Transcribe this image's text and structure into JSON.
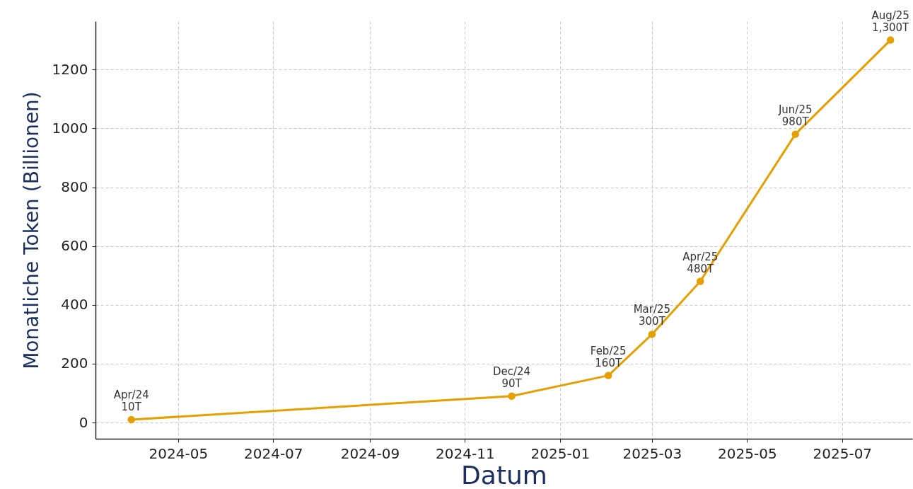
{
  "chart_data": {
    "type": "line",
    "xlabel": "Datum",
    "ylabel": "Monatliche Token (Billionen)",
    "x": [
      "2024-04",
      "2024-12",
      "2025-02",
      "2025-03",
      "2025-04",
      "2025-06",
      "2025-08"
    ],
    "series": [
      {
        "color": "#e69f00",
        "values": [
          10,
          90,
          160,
          300,
          480,
          980,
          1300
        ],
        "value_labels": [
          "Apr/24\n10T",
          "Dec/24\n90T",
          "Feb/25\n160T",
          "Mar/25\n300T",
          "Apr/25\n480T",
          "Jun/25\n980T",
          "Aug/25\n1,300T"
        ]
      }
    ],
    "xlim": [
      "2024-03-09",
      "2025-08-15"
    ],
    "xticks": [
      "2024-05",
      "2024-07",
      "2024-09",
      "2024-11",
      "2025-01",
      "2025-03",
      "2025-05",
      "2025-07"
    ],
    "ylim": [
      -55,
      1364
    ],
    "yticks": [
      0,
      200,
      400,
      600,
      800,
      1000,
      1200
    ],
    "grid": true,
    "marker": "circle",
    "line_style": "solid"
  }
}
